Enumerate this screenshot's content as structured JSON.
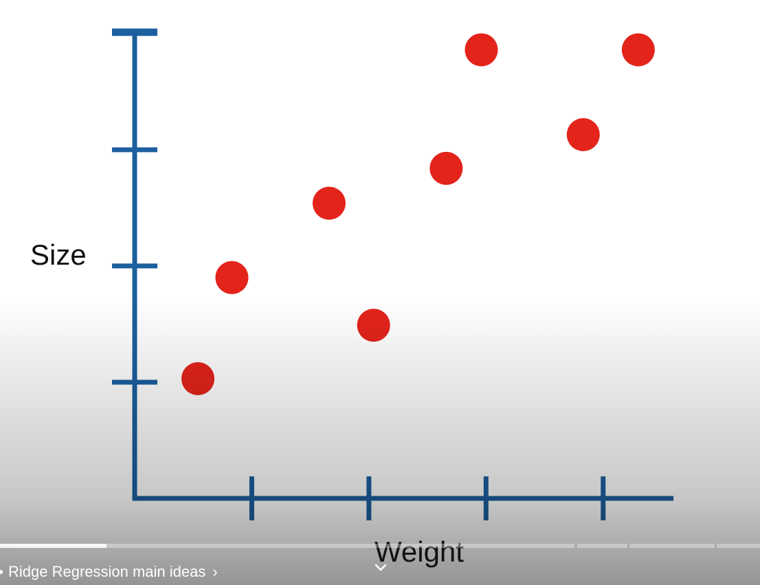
{
  "player": {
    "chapter_title": "Ridge Regression main ideas",
    "chapter_chevron": "›",
    "icons": [
      "chapter-dot-icon",
      "chevron-right-icon",
      "chevron-down-icon"
    ],
    "progress_fraction": 0.14
  },
  "chart_data": {
    "type": "scatter",
    "title": "",
    "xlabel": "Weight",
    "ylabel": "Size",
    "xlim": [
      0,
      4.6
    ],
    "ylim": [
      0,
      4.2
    ],
    "xticks": [
      1,
      2,
      3,
      4
    ],
    "yticks": [
      1,
      2,
      3,
      4
    ],
    "grid": false,
    "axis_color": "#1c5f9e",
    "point_color": "#e3241b",
    "series": [
      {
        "x": [
          0.54,
          0.83,
          1.66,
          2.04,
          2.66,
          2.96,
          3.83,
          4.3
        ],
        "y": [
          1.03,
          1.9,
          2.54,
          1.49,
          2.84,
          3.86,
          3.13,
          3.86
        ]
      }
    ]
  }
}
